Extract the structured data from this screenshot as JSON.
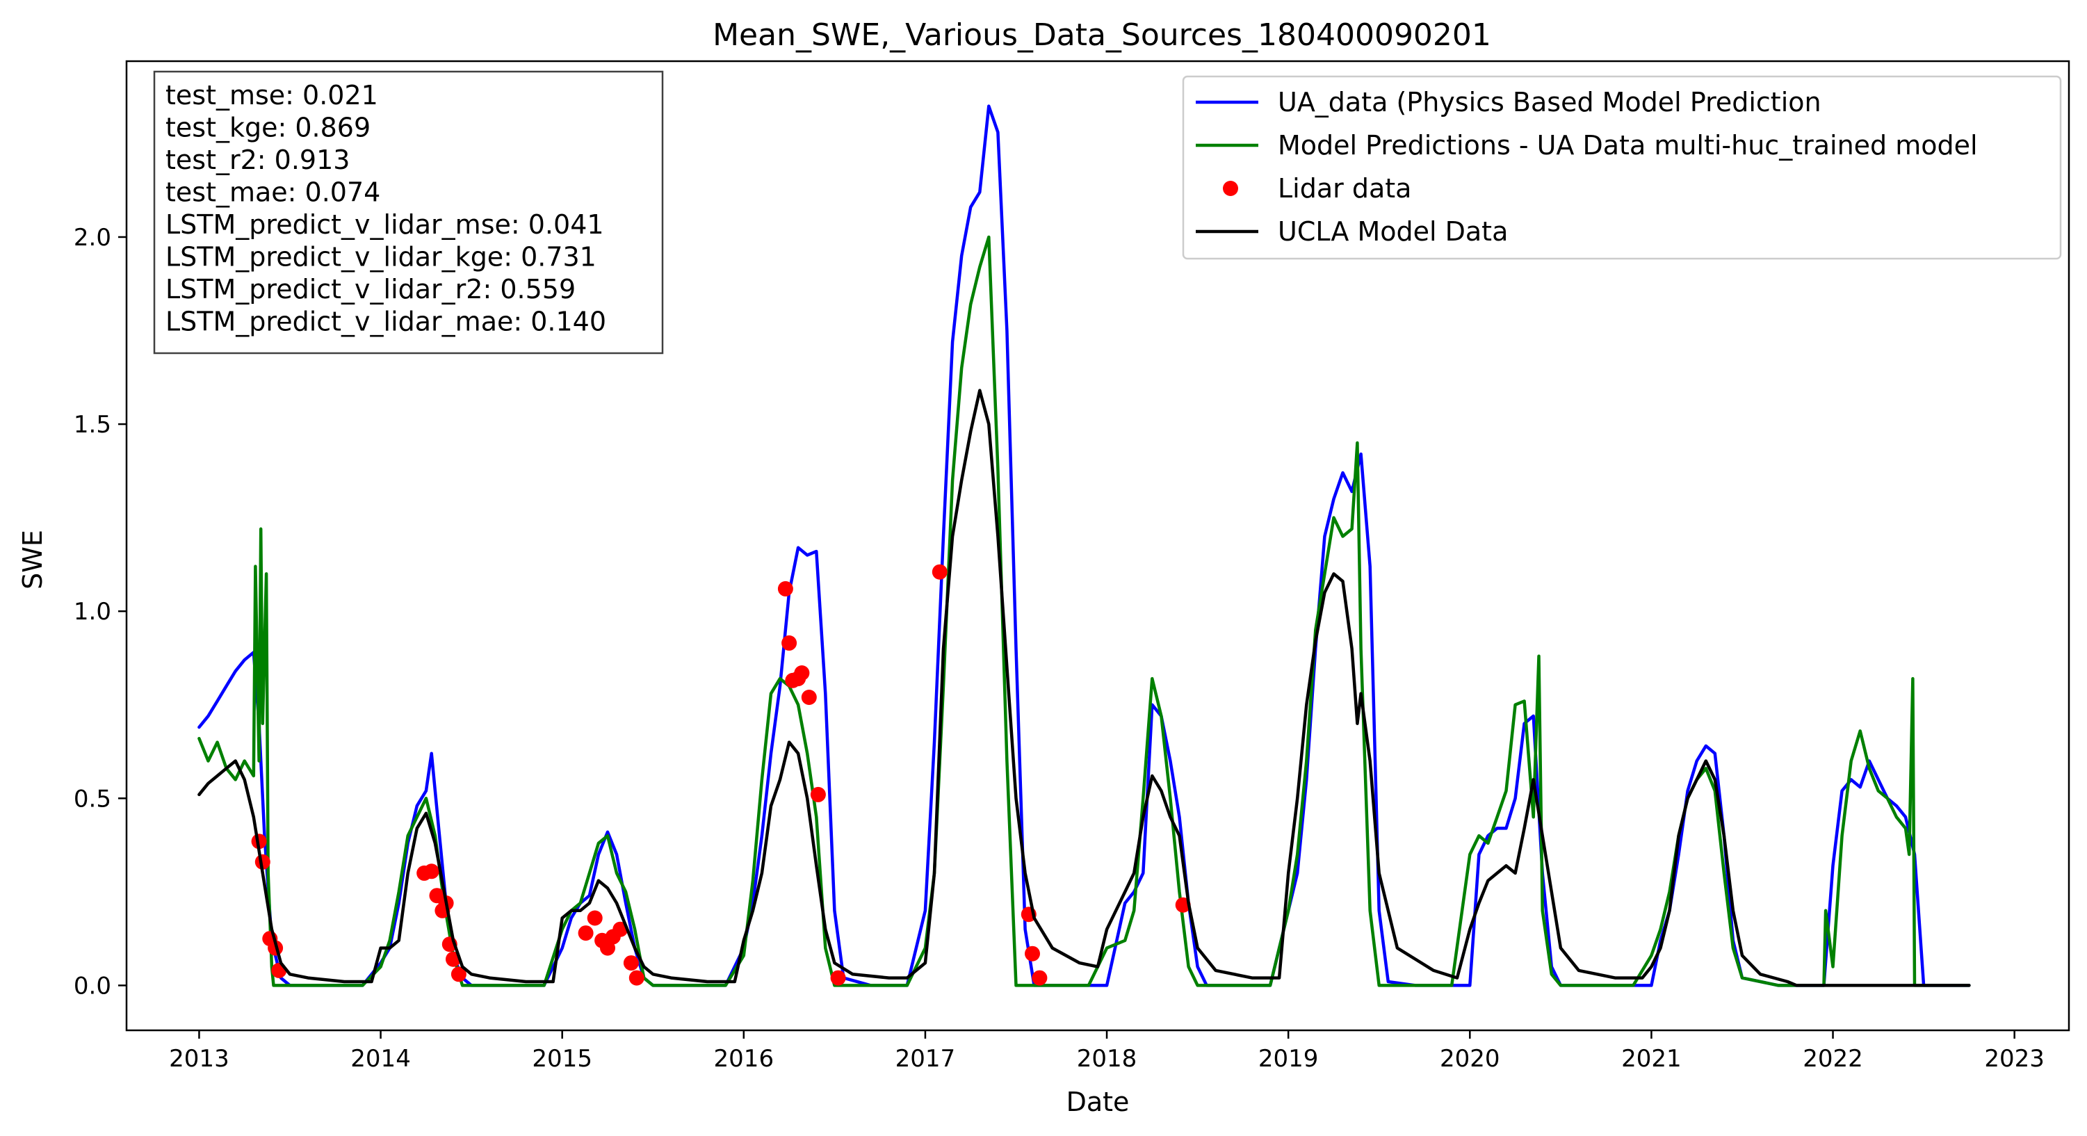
{
  "chart_data": {
    "type": "line",
    "title": "Mean_SWE,_Various_Data_Sources_180400090201",
    "xlabel": "Date",
    "ylabel": "SWE",
    "xlim": [
      2012.6,
      2023.3
    ],
    "ylim": [
      -0.12,
      2.47
    ],
    "x_ticks": [
      2013,
      2014,
      2015,
      2016,
      2017,
      2018,
      2019,
      2020,
      2021,
      2022,
      2023
    ],
    "x_tick_labels": [
      "2013",
      "2014",
      "2015",
      "2016",
      "2017",
      "2018",
      "2019",
      "2020",
      "2021",
      "2022",
      "2023"
    ],
    "y_ticks": [
      0.0,
      0.5,
      1.0,
      1.5,
      2.0
    ],
    "y_tick_labels": [
      "0.0",
      "0.5",
      "1.0",
      "1.5",
      "2.0"
    ],
    "grid": false,
    "legend_position": "top-right",
    "metrics_box": {
      "position": "top-left",
      "lines": [
        "test_mse: 0.021",
        "test_kge: 0.869",
        "test_r2: 0.913",
        "test_mae: 0.074",
        "LSTM_predict_v_lidar_mse: 0.041",
        "LSTM_predict_v_lidar_kge: 0.731",
        "LSTM_predict_v_lidar_r2: 0.559",
        "LSTM_predict_v_lidar_mae: 0.140"
      ]
    },
    "series": [
      {
        "name": "UA_data (Physics Based Model Prediction",
        "kind": "line",
        "color": "#0000ff",
        "x": [
          2013.0,
          2013.05,
          2013.1,
          2013.15,
          2013.2,
          2013.25,
          2013.3,
          2013.33,
          2013.36,
          2013.4,
          2013.45,
          2013.5,
          2013.7,
          2013.8,
          2013.9,
          2014.0,
          2014.05,
          2014.1,
          2014.15,
          2014.2,
          2014.25,
          2014.28,
          2014.32,
          2014.36,
          2014.4,
          2014.45,
          2014.5,
          2014.6,
          2014.8,
          2014.9,
          2015.0,
          2015.05,
          2015.1,
          2015.15,
          2015.2,
          2015.25,
          2015.3,
          2015.35,
          2015.4,
          2015.45,
          2015.5,
          2015.6,
          2015.8,
          2015.9,
          2016.0,
          2016.05,
          2016.1,
          2016.15,
          2016.2,
          2016.25,
          2016.3,
          2016.35,
          2016.4,
          2016.45,
          2016.5,
          2016.55,
          2016.7,
          2016.8,
          2016.9,
          2017.0,
          2017.05,
          2017.1,
          2017.15,
          2017.2,
          2017.25,
          2017.3,
          2017.35,
          2017.4,
          2017.45,
          2017.5,
          2017.55,
          2017.6,
          2017.7,
          2017.9,
          2018.0,
          2018.1,
          2018.15,
          2018.2,
          2018.25,
          2018.3,
          2018.35,
          2018.4,
          2018.45,
          2018.5,
          2018.55,
          2018.7,
          2018.9,
          2019.0,
          2019.05,
          2019.1,
          2019.15,
          2019.2,
          2019.25,
          2019.3,
          2019.35,
          2019.4,
          2019.45,
          2019.5,
          2019.55,
          2019.7,
          2019.9,
          2020.0,
          2020.05,
          2020.1,
          2020.15,
          2020.2,
          2020.25,
          2020.3,
          2020.35,
          2020.4,
          2020.45,
          2020.5,
          2020.7,
          2020.9,
          2021.0,
          2021.05,
          2021.1,
          2021.15,
          2021.2,
          2021.25,
          2021.3,
          2021.35,
          2021.4,
          2021.45,
          2021.5,
          2021.7,
          2021.85,
          2021.95,
          2022.0,
          2022.05,
          2022.1,
          2022.15,
          2022.2,
          2022.25,
          2022.3,
          2022.35,
          2022.4,
          2022.45,
          2022.5,
          2022.7,
          2022.75
        ],
        "y": [
          0.69,
          0.72,
          0.76,
          0.8,
          0.84,
          0.87,
          0.89,
          0.7,
          0.4,
          0.12,
          0.02,
          0.0,
          0.0,
          0.0,
          0.0,
          0.06,
          0.1,
          0.22,
          0.38,
          0.48,
          0.52,
          0.62,
          0.42,
          0.22,
          0.08,
          0.02,
          0.0,
          0.0,
          0.0,
          0.0,
          0.1,
          0.18,
          0.22,
          0.24,
          0.35,
          0.41,
          0.35,
          0.22,
          0.1,
          0.02,
          0.0,
          0.0,
          0.0,
          0.0,
          0.1,
          0.22,
          0.4,
          0.62,
          0.8,
          1.05,
          1.17,
          1.15,
          1.16,
          0.78,
          0.2,
          0.02,
          0.0,
          0.0,
          0.0,
          0.2,
          0.65,
          1.2,
          1.72,
          1.95,
          2.08,
          2.12,
          2.35,
          2.28,
          1.75,
          0.9,
          0.15,
          0.0,
          0.0,
          0.0,
          0.0,
          0.22,
          0.25,
          0.3,
          0.75,
          0.72,
          0.6,
          0.45,
          0.22,
          0.05,
          0.0,
          0.0,
          0.0,
          0.2,
          0.3,
          0.55,
          0.9,
          1.2,
          1.3,
          1.37,
          1.32,
          1.42,
          1.12,
          0.2,
          0.01,
          0.0,
          0.0,
          0.0,
          0.35,
          0.4,
          0.42,
          0.42,
          0.5,
          0.7,
          0.72,
          0.3,
          0.05,
          0.0,
          0.0,
          0.0,
          0.0,
          0.12,
          0.2,
          0.35,
          0.52,
          0.6,
          0.64,
          0.62,
          0.4,
          0.12,
          0.02,
          0.0,
          0.0,
          0.0,
          0.32,
          0.52,
          0.55,
          0.53,
          0.6,
          0.55,
          0.5,
          0.48,
          0.45,
          0.35,
          0.0,
          0.0,
          0.0
        ]
      },
      {
        "name": "Model Predictions - UA Data multi-huc_trained model",
        "kind": "line",
        "color": "#008000",
        "x": [
          2013.0,
          2013.05,
          2013.1,
          2013.15,
          2013.2,
          2013.25,
          2013.3,
          2013.31,
          2013.33,
          2013.34,
          2013.35,
          2013.37,
          2013.38,
          2013.4,
          2013.41,
          2013.43,
          2013.45,
          2013.5,
          2013.7,
          2013.9,
          2014.0,
          2014.05,
          2014.1,
          2014.15,
          2014.2,
          2014.25,
          2014.3,
          2014.35,
          2014.4,
          2014.45,
          2014.5,
          2014.6,
          2014.8,
          2014.9,
          2015.0,
          2015.05,
          2015.1,
          2015.15,
          2015.2,
          2015.25,
          2015.3,
          2015.35,
          2015.4,
          2015.45,
          2015.5,
          2015.6,
          2015.8,
          2015.9,
          2016.0,
          2016.05,
          2016.1,
          2016.15,
          2016.2,
          2016.25,
          2016.3,
          2016.35,
          2016.4,
          2016.45,
          2016.5,
          2016.55,
          2016.7,
          2016.8,
          2016.9,
          2017.0,
          2017.05,
          2017.1,
          2017.15,
          2017.2,
          2017.25,
          2017.3,
          2017.35,
          2017.4,
          2017.45,
          2017.5,
          2017.55,
          2017.6,
          2017.7,
          2017.9,
          2018.0,
          2018.1,
          2018.15,
          2018.2,
          2018.25,
          2018.3,
          2018.35,
          2018.4,
          2018.45,
          2018.5,
          2018.7,
          2018.9,
          2019.0,
          2019.05,
          2019.1,
          2019.15,
          2019.2,
          2019.25,
          2019.3,
          2019.35,
          2019.38,
          2019.4,
          2019.45,
          2019.5,
          2019.7,
          2019.9,
          2020.0,
          2020.05,
          2020.1,
          2020.15,
          2020.2,
          2020.25,
          2020.3,
          2020.35,
          2020.38,
          2020.4,
          2020.45,
          2020.5,
          2020.7,
          2020.9,
          2021.0,
          2021.05,
          2021.1,
          2021.15,
          2021.2,
          2021.25,
          2021.3,
          2021.35,
          2021.4,
          2021.45,
          2021.5,
          2021.7,
          2021.85,
          2021.95,
          2021.96,
          2022.0,
          2022.05,
          2022.1,
          2022.15,
          2022.2,
          2022.25,
          2022.3,
          2022.35,
          2022.4,
          2022.42,
          2022.44,
          2022.45,
          2022.5,
          2022.7,
          2022.75
        ],
        "y": [
          0.66,
          0.6,
          0.65,
          0.58,
          0.55,
          0.6,
          0.56,
          1.12,
          0.6,
          1.22,
          0.7,
          1.1,
          0.3,
          0.05,
          0.0,
          0.0,
          0.0,
          0.0,
          0.0,
          0.0,
          0.05,
          0.12,
          0.25,
          0.4,
          0.45,
          0.5,
          0.4,
          0.22,
          0.08,
          0.0,
          0.0,
          0.0,
          0.0,
          0.0,
          0.15,
          0.2,
          0.22,
          0.3,
          0.38,
          0.4,
          0.3,
          0.25,
          0.15,
          0.02,
          0.0,
          0.0,
          0.0,
          0.0,
          0.08,
          0.28,
          0.55,
          0.78,
          0.82,
          0.8,
          0.75,
          0.62,
          0.45,
          0.1,
          0.0,
          0.0,
          0.0,
          0.0,
          0.0,
          0.1,
          0.3,
          0.8,
          1.35,
          1.65,
          1.82,
          1.92,
          2.0,
          1.38,
          0.6,
          0.0,
          0.0,
          0.0,
          0.0,
          0.0,
          0.1,
          0.12,
          0.2,
          0.5,
          0.82,
          0.72,
          0.5,
          0.25,
          0.05,
          0.0,
          0.0,
          0.0,
          0.2,
          0.35,
          0.6,
          0.95,
          1.1,
          1.25,
          1.2,
          1.22,
          1.45,
          0.9,
          0.2,
          0.0,
          0.0,
          0.0,
          0.35,
          0.4,
          0.38,
          0.45,
          0.52,
          0.75,
          0.76,
          0.45,
          0.88,
          0.2,
          0.03,
          0.0,
          0.0,
          0.0,
          0.08,
          0.15,
          0.25,
          0.4,
          0.5,
          0.55,
          0.58,
          0.52,
          0.3,
          0.1,
          0.02,
          0.0,
          0.0,
          0.0,
          0.2,
          0.05,
          0.4,
          0.6,
          0.68,
          0.58,
          0.52,
          0.5,
          0.45,
          0.42,
          0.35,
          0.82,
          0.0,
          0.0,
          0.0,
          0.0
        ]
      },
      {
        "name": "Lidar data",
        "kind": "scatter",
        "color": "#ff0000",
        "x": [
          2013.33,
          2013.35,
          2013.39,
          2013.42,
          2013.44,
          2014.24,
          2014.28,
          2014.31,
          2014.34,
          2014.36,
          2014.38,
          2014.4,
          2014.43,
          2015.13,
          2015.18,
          2015.22,
          2015.25,
          2015.28,
          2015.32,
          2015.38,
          2015.41,
          2016.23,
          2016.25,
          2016.27,
          2016.3,
          2016.32,
          2016.36,
          2016.41,
          2016.52,
          2017.08,
          2017.57,
          2017.59,
          2017.63,
          2018.42
        ],
        "y": [
          0.385,
          0.33,
          0.125,
          0.1,
          0.04,
          0.3,
          0.305,
          0.24,
          0.2,
          0.22,
          0.11,
          0.07,
          0.03,
          0.14,
          0.18,
          0.12,
          0.1,
          0.13,
          0.15,
          0.06,
          0.02,
          1.06,
          0.915,
          0.815,
          0.82,
          0.835,
          0.77,
          0.51,
          0.02,
          1.105,
          0.19,
          0.085,
          0.02,
          0.215
        ]
      },
      {
        "name": "UCLA Model Data",
        "kind": "line",
        "color": "#000000",
        "x": [
          2013.0,
          2013.05,
          2013.1,
          2013.15,
          2013.2,
          2013.25,
          2013.3,
          2013.35,
          2013.4,
          2013.45,
          2013.5,
          2013.6,
          2013.8,
          2013.95,
          2014.0,
          2014.05,
          2014.1,
          2014.15,
          2014.2,
          2014.25,
          2014.3,
          2014.35,
          2014.4,
          2014.45,
          2014.5,
          2014.6,
          2014.8,
          2014.95,
          2015.0,
          2015.05,
          2015.1,
          2015.15,
          2015.2,
          2015.25,
          2015.3,
          2015.35,
          2015.4,
          2015.45,
          2015.5,
          2015.6,
          2015.8,
          2015.95,
          2016.0,
          2016.05,
          2016.1,
          2016.15,
          2016.2,
          2016.25,
          2016.3,
          2016.35,
          2016.4,
          2016.45,
          2016.5,
          2016.6,
          2016.8,
          2016.9,
          2017.0,
          2017.05,
          2017.1,
          2017.15,
          2017.2,
          2017.25,
          2017.3,
          2017.35,
          2017.4,
          2017.45,
          2017.5,
          2017.55,
          2017.6,
          2017.7,
          2017.85,
          2017.95,
          2018.0,
          2018.1,
          2018.15,
          2018.2,
          2018.25,
          2018.3,
          2018.35,
          2018.4,
          2018.45,
          2018.5,
          2018.6,
          2018.8,
          2018.95,
          2019.0,
          2019.05,
          2019.1,
          2019.15,
          2019.2,
          2019.25,
          2019.3,
          2019.35,
          2019.38,
          2019.4,
          2019.45,
          2019.5,
          2019.6,
          2019.8,
          2019.93,
          2020.0,
          2020.05,
          2020.1,
          2020.15,
          2020.2,
          2020.25,
          2020.3,
          2020.35,
          2020.4,
          2020.45,
          2020.5,
          2020.6,
          2020.8,
          2020.95,
          2021.0,
          2021.05,
          2021.1,
          2021.15,
          2021.2,
          2021.25,
          2021.3,
          2021.35,
          2021.4,
          2021.45,
          2021.5,
          2021.6,
          2021.75,
          2021.8,
          2022.0,
          2022.5,
          2022.75
        ],
        "y": [
          0.51,
          0.54,
          0.56,
          0.58,
          0.6,
          0.55,
          0.45,
          0.3,
          0.15,
          0.06,
          0.03,
          0.02,
          0.01,
          0.01,
          0.1,
          0.1,
          0.12,
          0.3,
          0.42,
          0.46,
          0.38,
          0.25,
          0.12,
          0.05,
          0.03,
          0.02,
          0.01,
          0.01,
          0.18,
          0.2,
          0.2,
          0.22,
          0.28,
          0.26,
          0.22,
          0.16,
          0.1,
          0.05,
          0.03,
          0.02,
          0.01,
          0.01,
          0.12,
          0.2,
          0.3,
          0.48,
          0.55,
          0.65,
          0.62,
          0.5,
          0.32,
          0.15,
          0.06,
          0.03,
          0.02,
          0.02,
          0.06,
          0.3,
          0.9,
          1.2,
          1.35,
          1.48,
          1.59,
          1.5,
          1.2,
          0.85,
          0.5,
          0.3,
          0.18,
          0.1,
          0.06,
          0.05,
          0.15,
          0.25,
          0.3,
          0.45,
          0.56,
          0.52,
          0.45,
          0.4,
          0.22,
          0.1,
          0.04,
          0.02,
          0.02,
          0.3,
          0.5,
          0.75,
          0.92,
          1.05,
          1.1,
          1.08,
          0.9,
          0.7,
          0.78,
          0.6,
          0.3,
          0.1,
          0.04,
          0.02,
          0.15,
          0.22,
          0.28,
          0.3,
          0.32,
          0.3,
          0.42,
          0.55,
          0.4,
          0.25,
          0.1,
          0.04,
          0.02,
          0.02,
          0.05,
          0.1,
          0.2,
          0.4,
          0.5,
          0.55,
          0.6,
          0.55,
          0.4,
          0.2,
          0.08,
          0.03,
          0.01,
          0.0,
          0.0,
          0.0,
          0.0
        ]
      }
    ]
  }
}
